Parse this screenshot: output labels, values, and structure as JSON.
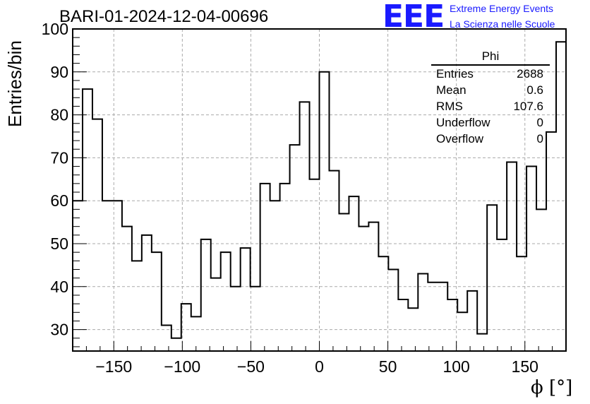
{
  "header": {
    "title": "BARI-01-2024-12-04-00696"
  },
  "logo": {
    "mark": "EEE",
    "line1": "Extreme Energy Events",
    "line2": "La Scienza nelle Scuole",
    "color": "#1a1aff"
  },
  "stats": {
    "name": "Phi",
    "rows": [
      {
        "label": "Entries",
        "value": "2688"
      },
      {
        "label": "Mean",
        "value": "0.6"
      },
      {
        "label": "RMS",
        "value": "107.6"
      },
      {
        "label": "Underflow",
        "value": "0"
      },
      {
        "label": "Overflow",
        "value": "0"
      }
    ]
  },
  "chart_data": {
    "type": "histogram",
    "title": "BARI-01-2024-12-04-00696",
    "xlabel": "ϕ [°]",
    "ylabel": "Entries/bin",
    "xlim": [
      -180,
      180
    ],
    "ylim": [
      25,
      100
    ],
    "bin_width": 7.2,
    "bin_edges_start": -180,
    "values": [
      60,
      86,
      79,
      60,
      60,
      54,
      46,
      52,
      48,
      31,
      28,
      36,
      33,
      51,
      42,
      48,
      40,
      49,
      40,
      64,
      60,
      64,
      73,
      83,
      65,
      90,
      67,
      57,
      61,
      54,
      55,
      47,
      44,
      37,
      35,
      43,
      41,
      41,
      37,
      34,
      39,
      29,
      59,
      51,
      69,
      47,
      68,
      58,
      76,
      97
    ],
    "x_ticks": [
      -150,
      -100,
      -50,
      0,
      50,
      100,
      150
    ],
    "x_tick_labels": [
      "−150",
      "−100",
      "−50",
      "0",
      "50",
      "100",
      "150"
    ],
    "y_ticks": [
      30,
      40,
      50,
      60,
      70,
      80,
      90,
      100
    ],
    "y_tick_labels": [
      "30",
      "40",
      "50",
      "60",
      "70",
      "80",
      "90",
      "100"
    ],
    "grid": true,
    "legend": "stats box top-right"
  }
}
